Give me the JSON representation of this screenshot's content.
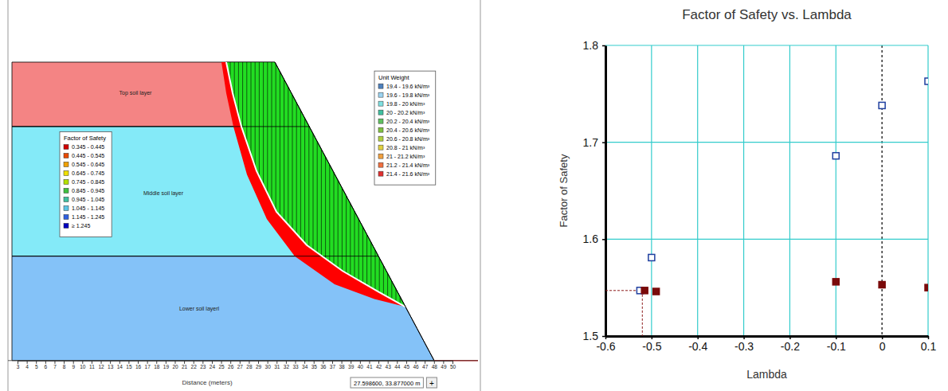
{
  "diagram": {
    "layers": [
      {
        "name": "Top soil layer",
        "color": "#f48484"
      },
      {
        "name": "Middle soil  layer",
        "color": "#84eaf8"
      },
      {
        "name": "Lower soil layerl",
        "color": "#84c2f8"
      }
    ],
    "fs_legend": {
      "title": "Factor of Safety",
      "items": [
        {
          "label": "0.345 - 0.445",
          "color": "#d00000"
        },
        {
          "label": "0.445 - 0.545",
          "color": "#e84a00"
        },
        {
          "label": "0.545 - 0.645",
          "color": "#f0a000"
        },
        {
          "label": "0.645 - 0.745",
          "color": "#f0e000"
        },
        {
          "label": "0.745 - 0.845",
          "color": "#b4e000"
        },
        {
          "label": "0.845 - 0.945",
          "color": "#40c040"
        },
        {
          "label": "0.945 - 1.045",
          "color": "#40c0a0"
        },
        {
          "label": "1.045 - 1.145",
          "color": "#5cc4e4"
        },
        {
          "label": "1.145 - 1.245",
          "color": "#3060e0"
        },
        {
          "label": "≥ 1.245",
          "color": "#0000c0"
        }
      ]
    },
    "unit_weight_legend": {
      "title": "Unit Weight",
      "items": [
        {
          "label": "19.4 - 19.6 kN/m³",
          "color": "#4f81bd"
        },
        {
          "label": "19.6 - 19.8 kN/m³",
          "color": "#9bd3f0"
        },
        {
          "label": "19.8 - 20 kN/m³",
          "color": "#7fe0e0"
        },
        {
          "label": "20 - 20.2 kN/m³",
          "color": "#40c0a0"
        },
        {
          "label": "20.2 - 20.4 kN/m³",
          "color": "#60c060"
        },
        {
          "label": "20.4 - 20.6 kN/m³",
          "color": "#80c040"
        },
        {
          "label": "20.6 - 20.8 kN/m³",
          "color": "#b0d040"
        },
        {
          "label": "20.8 - 21 kN/m³",
          "color": "#e0d040"
        },
        {
          "label": "21 - 21.2 kN/m³",
          "color": "#f0a040"
        },
        {
          "label": "21.2 - 21.4 kN/m³",
          "color": "#f07040"
        },
        {
          "label": "21.4 - 21.6 kN/m³",
          "color": "#e03030"
        }
      ]
    },
    "x_axis": {
      "title": "Distance (meters)",
      "ticks": [
        3,
        4,
        5,
        6,
        7,
        8,
        9,
        10,
        11,
        12,
        13,
        14,
        15,
        16,
        17,
        18,
        19,
        20,
        21,
        22,
        23,
        24,
        25,
        26,
        27,
        28,
        29,
        30,
        31,
        32,
        33,
        34,
        35,
        36,
        37,
        38,
        39,
        40,
        41,
        42,
        43,
        44,
        45,
        46,
        47,
        48,
        49,
        50
      ]
    },
    "coordinates": "27.598600, 33.877000 m",
    "button": "+"
  },
  "chart_data": {
    "type": "scatter",
    "title": "Factor of Safety vs. Lambda",
    "x_label": "Lambda",
    "y_label": "Factor of Safety",
    "xlim": [
      -0.6,
      0.1
    ],
    "xticks": [
      -0.6,
      -0.5,
      -0.4,
      -0.3,
      -0.2,
      -0.1,
      0,
      0.1
    ],
    "ylim": [
      1.5,
      1.8
    ],
    "yticks": [
      1.5,
      1.6,
      1.7,
      1.8
    ],
    "grid": true,
    "series": [
      {
        "color": "#1f3f9f",
        "marker": "square-open",
        "x": [
          -0.525,
          -0.5,
          -0.1,
          0,
          0.1
        ],
        "values": [
          1.547,
          1.581,
          1.686,
          1.738,
          1.763
        ]
      },
      {
        "color": "#7a0a0a",
        "marker": "square",
        "x": [
          -0.515,
          -0.49,
          -0.1,
          0,
          0.1
        ],
        "values": [
          1.547,
          1.546,
          1.556,
          1.553,
          1.55
        ]
      }
    ],
    "crossing": {
      "x": -0.52,
      "y": 1.547
    }
  }
}
